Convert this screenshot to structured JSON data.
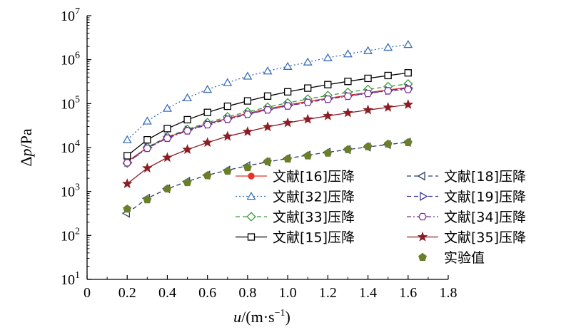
{
  "chart_data": {
    "type": "line",
    "xlabel": "u/(m·s⁻¹)",
    "xlabel_parts": {
      "var": "u",
      "rest": "/(m·s",
      "sup": "−1",
      "close": ")"
    },
    "ylabel": "Δp/Pa",
    "ylabel_parts": {
      "delta": "Δ",
      "var": "p",
      "rest": "/Pa"
    },
    "xlim": [
      0,
      1.8
    ],
    "ylim": [
      10,
      10000000
    ],
    "y_scale": "log",
    "grid": false,
    "legend_position": "bottom-right",
    "x_ticks": [
      "0",
      "0.2",
      "0.4",
      "0.6",
      "0.8",
      "1.0",
      "1.2",
      "1.4",
      "1.6",
      "1.8"
    ],
    "y_ticks": [
      {
        "base": "10",
        "exp": "1"
      },
      {
        "base": "10",
        "exp": "2"
      },
      {
        "base": "10",
        "exp": "3"
      },
      {
        "base": "10",
        "exp": "4"
      },
      {
        "base": "10",
        "exp": "5"
      },
      {
        "base": "10",
        "exp": "6"
      },
      {
        "base": "10",
        "exp": "7"
      }
    ],
    "x": [
      0.2,
      0.3,
      0.4,
      0.5,
      0.6,
      0.7,
      0.8,
      0.9,
      1.0,
      1.1,
      1.2,
      1.3,
      1.4,
      1.5,
      1.6
    ],
    "series": [
      {
        "name": "文献[16]压降",
        "color": "#e8332a",
        "marker": "circle-filled",
        "line": "solid",
        "values": [
          4800,
          10000,
          17000,
          25000,
          35000,
          46000,
          60000,
          76000,
          93000,
          112000,
          132000,
          155000,
          178000,
          205000,
          233000
        ]
      },
      {
        "name": "文献[32]压降",
        "color": "#3b6fb6",
        "marker": "triangle-up-open",
        "line": "dotted",
        "values": [
          15000,
          40000,
          78000,
          135000,
          210000,
          300000,
          420000,
          550000,
          700000,
          880000,
          1100000,
          1350000,
          1600000,
          1900000,
          2200000
        ]
      },
      {
        "name": "文献[33]压降",
        "color": "#3c9a3c",
        "marker": "diamond-open",
        "line": "dashed",
        "values": [
          4400,
          10200,
          17500,
          26000,
          37000,
          50000,
          65000,
          83000,
          104000,
          127000,
          153000,
          180000,
          211000,
          244000,
          280000
        ]
      },
      {
        "name": "文献[15]压降",
        "color": "#000000",
        "marker": "square-open",
        "line": "solid",
        "values": [
          6500,
          15000,
          27000,
          43000,
          63000,
          87000,
          115000,
          148000,
          185000,
          225000,
          270000,
          320000,
          375000,
          435000,
          500000
        ]
      },
      {
        "name": "文献[18]压降",
        "color": "#2c3e6b",
        "marker": "triangle-left-open",
        "line": "dashed",
        "values": [
          320,
          700,
          1150,
          1700,
          2350,
          3050,
          3850,
          4700,
          5650,
          6700,
          7800,
          9000,
          10300,
          11700,
          13200
        ]
      },
      {
        "name": "文献[19]压降",
        "color": "#3a3a9a",
        "marker": "triangle-right-open",
        "line": "dashed",
        "values": [
          4600,
          9900,
          16800,
          25000,
          34000,
          45000,
          58000,
          73000,
          90000,
          108000,
          128000,
          150000,
          173000,
          198000,
          225000
        ]
      },
      {
        "name": "文献[34]压降",
        "color": "#7a2f8f",
        "marker": "hexagon-open",
        "line": "dashdot",
        "values": [
          4500,
          9600,
          16300,
          24000,
          33000,
          44000,
          57000,
          72000,
          88000,
          106000,
          126000,
          147000,
          170000,
          195000,
          210000
        ]
      },
      {
        "name": "文献[35]压降",
        "color": "#8b1e24",
        "marker": "star-filled",
        "line": "solid",
        "values": [
          1500,
          3400,
          5900,
          9000,
          13000,
          18000,
          23000,
          29500,
          36500,
          44000,
          52500,
          61500,
          71500,
          82000,
          95000
        ]
      },
      {
        "name": "实验值",
        "color": "#6b7f2a",
        "marker": "pentagon-filled",
        "line": "none",
        "values": [
          400,
          650,
          1150,
          1600,
          2300,
          2900,
          3500,
          4800,
          5500,
          6500,
          7500,
          9000,
          10500,
          12000,
          13000
        ]
      }
    ],
    "legend_layout": [
      [
        "文献[16]压降",
        "文献[18]压降"
      ],
      [
        "文献[32]压降",
        "文献[19]压降"
      ],
      [
        "文献[33]压降",
        "文献[34]压降"
      ],
      [
        "文献[15]压降",
        "文献[35]压降"
      ],
      [
        "",
        "实验值"
      ]
    ]
  }
}
